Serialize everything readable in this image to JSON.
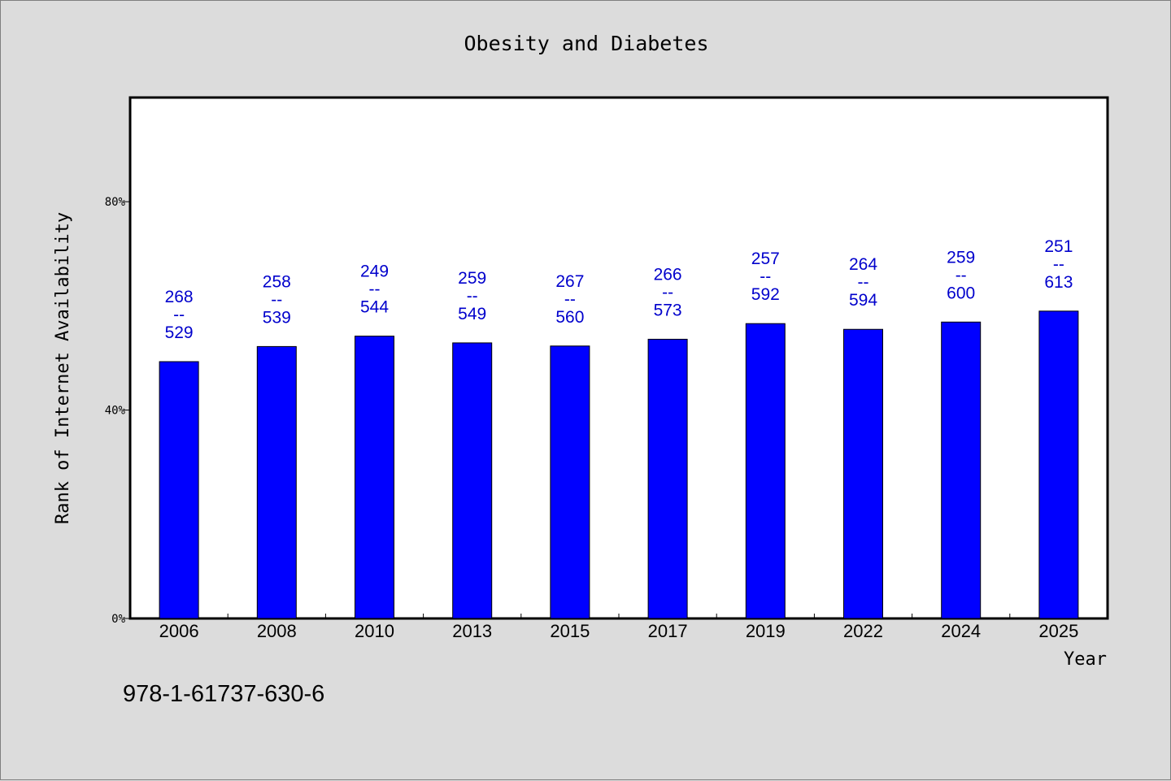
{
  "chart_data": {
    "type": "bar",
    "title": "Obesity and Diabetes",
    "xlabel": "Year",
    "ylabel": "Rank of Internet Availability",
    "categories": [
      "2006",
      "2008",
      "2010",
      "2013",
      "2015",
      "2017",
      "2019",
      "2022",
      "2024",
      "2025"
    ],
    "values": [
      49.3,
      52.2,
      54.2,
      52.9,
      52.3,
      53.6,
      56.6,
      55.5,
      56.9,
      59.0
    ],
    "value_unit": "%",
    "data_labels": [
      {
        "top": "268",
        "sep": "--",
        "bottom": "529"
      },
      {
        "top": "258",
        "sep": "--",
        "bottom": "539"
      },
      {
        "top": "249",
        "sep": "--",
        "bottom": "544"
      },
      {
        "top": "259",
        "sep": "--",
        "bottom": "549"
      },
      {
        "top": "267",
        "sep": "--",
        "bottom": "560"
      },
      {
        "top": "266",
        "sep": "--",
        "bottom": "573"
      },
      {
        "top": "257",
        "sep": "--",
        "bottom": "592"
      },
      {
        "top": "264",
        "sep": "--",
        "bottom": "594"
      },
      {
        "top": "259",
        "sep": "--",
        "bottom": "600"
      },
      {
        "top": "251",
        "sep": "--",
        "bottom": "613"
      }
    ],
    "y_ticks": [
      0,
      40,
      80
    ],
    "y_tick_labels": [
      "0%",
      "40%",
      "80%"
    ],
    "ylim": [
      0,
      100
    ],
    "grid": false,
    "legend": "none",
    "colors": {
      "bar": "#0000ff",
      "data_label": "#0000cc",
      "background": "#dcdcdc",
      "plot_background": "#ffffff"
    }
  },
  "footer": {
    "isbn": "978-1-61737-630-6"
  }
}
